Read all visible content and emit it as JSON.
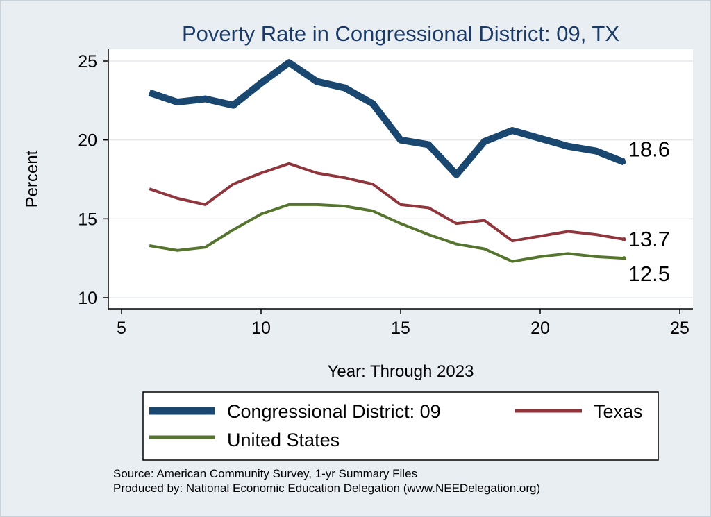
{
  "chart_data": {
    "type": "line",
    "title": "Poverty Rate in Congressional District:  09, TX",
    "xlabel": "Year: Through 2023",
    "ylabel": "Percent",
    "xlim": [
      5,
      25
    ],
    "ylim": [
      10,
      25
    ],
    "xticks": [
      "5",
      "10",
      "15",
      "20",
      "25"
    ],
    "yticks": [
      "10",
      "15",
      "20",
      "25"
    ],
    "grid": true,
    "legend_position": "bottom",
    "series": [
      {
        "name": "Congressional District:  09",
        "color": "#1a476f",
        "x": [
          6,
          7,
          8,
          9,
          10,
          11,
          12,
          13,
          14,
          15,
          16,
          17,
          18,
          19,
          20,
          21,
          22,
          23
        ],
        "y": [
          23.0,
          22.4,
          22.6,
          22.2,
          23.6,
          24.9,
          23.7,
          23.3,
          22.3,
          20.0,
          19.7,
          17.8,
          19.9,
          20.6,
          20.1,
          19.6,
          19.3,
          18.6
        ],
        "end_label": "18.6"
      },
      {
        "name": "Texas",
        "color": "#90353b",
        "x": [
          6,
          7,
          8,
          9,
          10,
          11,
          12,
          13,
          14,
          15,
          16,
          17,
          18,
          19,
          20,
          21,
          22,
          23
        ],
        "y": [
          16.9,
          16.3,
          15.9,
          17.2,
          17.9,
          18.5,
          17.9,
          17.6,
          17.2,
          15.9,
          15.7,
          14.7,
          14.9,
          13.6,
          13.9,
          14.2,
          14.0,
          13.7
        ],
        "end_label": "13.7"
      },
      {
        "name": "United States",
        "color": "#55752f",
        "x": [
          6,
          7,
          8,
          9,
          10,
          11,
          12,
          13,
          14,
          15,
          16,
          17,
          18,
          19,
          20,
          21,
          22,
          23
        ],
        "y": [
          13.3,
          13.0,
          13.2,
          14.3,
          15.3,
          15.9,
          15.9,
          15.8,
          15.5,
          14.7,
          14.0,
          13.4,
          13.1,
          12.3,
          12.6,
          12.8,
          12.6,
          12.5
        ],
        "end_label": "12.5"
      }
    ]
  },
  "source_lines": [
    "Source: American Community Survey, 1-yr Summary Files",
    "Produced by: National Economic Education Delegation (www.NEEDelegation.org)"
  ]
}
